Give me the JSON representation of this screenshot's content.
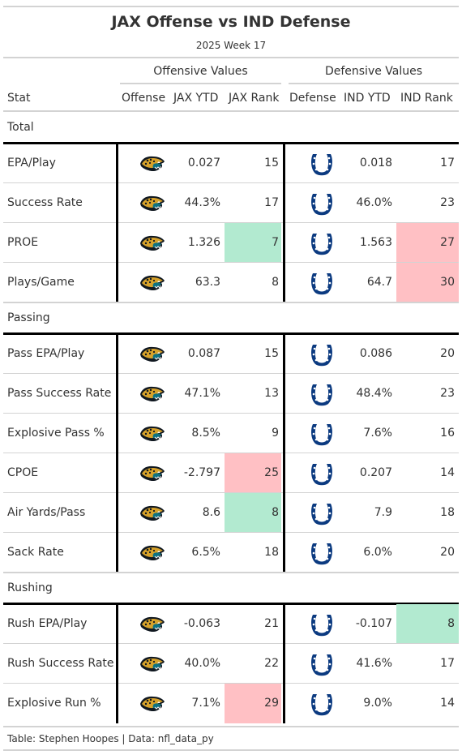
{
  "header": {
    "title": "JAX Offense vs IND Defense",
    "subtitle": "2025 Week 17",
    "spanner_offense": "Offensive Values",
    "spanner_defense": "Defensive Values"
  },
  "columns": {
    "stat": "Stat",
    "offense": "Offense",
    "jax_ytd": "JAX YTD",
    "jax_rank": "JAX Rank",
    "defense": "Defense",
    "ind_ytd": "IND YTD",
    "ind_rank": "IND Rank"
  },
  "icons": {
    "offense_logo": "jaguars-logo-icon",
    "defense_logo": "colts-horseshoe-icon"
  },
  "colors": {
    "good": "#b2ead0",
    "bad": "#ffc0c4",
    "colts_blue": "#0b3a80",
    "jaguars_teal": "#0d7282"
  },
  "groups": [
    {
      "label": "Total",
      "rows": [
        {
          "stat": "EPA/Play",
          "jax_ytd": "0.027",
          "jax_rank": "15",
          "jax_hl": "",
          "ind_ytd": "0.018",
          "ind_rank": "17",
          "ind_hl": ""
        },
        {
          "stat": "Success Rate",
          "jax_ytd": "44.3%",
          "jax_rank": "17",
          "jax_hl": "",
          "ind_ytd": "46.0%",
          "ind_rank": "23",
          "ind_hl": ""
        },
        {
          "stat": "PROE",
          "jax_ytd": "1.326",
          "jax_rank": "7",
          "jax_hl": "good",
          "ind_ytd": "1.563",
          "ind_rank": "27",
          "ind_hl": "bad"
        },
        {
          "stat": "Plays/Game",
          "jax_ytd": "63.3",
          "jax_rank": "8",
          "jax_hl": "",
          "ind_ytd": "64.7",
          "ind_rank": "30",
          "ind_hl": "bad"
        }
      ]
    },
    {
      "label": "Passing",
      "rows": [
        {
          "stat": "Pass EPA/Play",
          "jax_ytd": "0.087",
          "jax_rank": "15",
          "jax_hl": "",
          "ind_ytd": "0.086",
          "ind_rank": "20",
          "ind_hl": ""
        },
        {
          "stat": "Pass Success Rate",
          "jax_ytd": "47.1%",
          "jax_rank": "13",
          "jax_hl": "",
          "ind_ytd": "48.4%",
          "ind_rank": "23",
          "ind_hl": ""
        },
        {
          "stat": "Explosive Pass %",
          "jax_ytd": "8.5%",
          "jax_rank": "9",
          "jax_hl": "",
          "ind_ytd": "7.6%",
          "ind_rank": "16",
          "ind_hl": ""
        },
        {
          "stat": "CPOE",
          "jax_ytd": "-2.797",
          "jax_rank": "25",
          "jax_hl": "bad",
          "ind_ytd": "0.207",
          "ind_rank": "14",
          "ind_hl": ""
        },
        {
          "stat": "Air Yards/Pass",
          "jax_ytd": "8.6",
          "jax_rank": "8",
          "jax_hl": "good",
          "ind_ytd": "7.9",
          "ind_rank": "18",
          "ind_hl": ""
        },
        {
          "stat": "Sack Rate",
          "jax_ytd": "6.5%",
          "jax_rank": "18",
          "jax_hl": "",
          "ind_ytd": "6.0%",
          "ind_rank": "20",
          "ind_hl": ""
        }
      ]
    },
    {
      "label": "Rushing",
      "rows": [
        {
          "stat": "Rush EPA/Play",
          "jax_ytd": "-0.063",
          "jax_rank": "21",
          "jax_hl": "",
          "ind_ytd": "-0.107",
          "ind_rank": "8",
          "ind_hl": "good"
        },
        {
          "stat": "Rush Success Rate",
          "jax_ytd": "40.0%",
          "jax_rank": "22",
          "jax_hl": "",
          "ind_ytd": "41.6%",
          "ind_rank": "17",
          "ind_hl": ""
        },
        {
          "stat": "Explosive Run %",
          "jax_ytd": "7.1%",
          "jax_rank": "29",
          "jax_hl": "bad",
          "ind_ytd": "9.0%",
          "ind_rank": "14",
          "ind_hl": ""
        }
      ]
    }
  ],
  "footer": "Table: Stephen Hoopes | Data: nfl_data_py"
}
